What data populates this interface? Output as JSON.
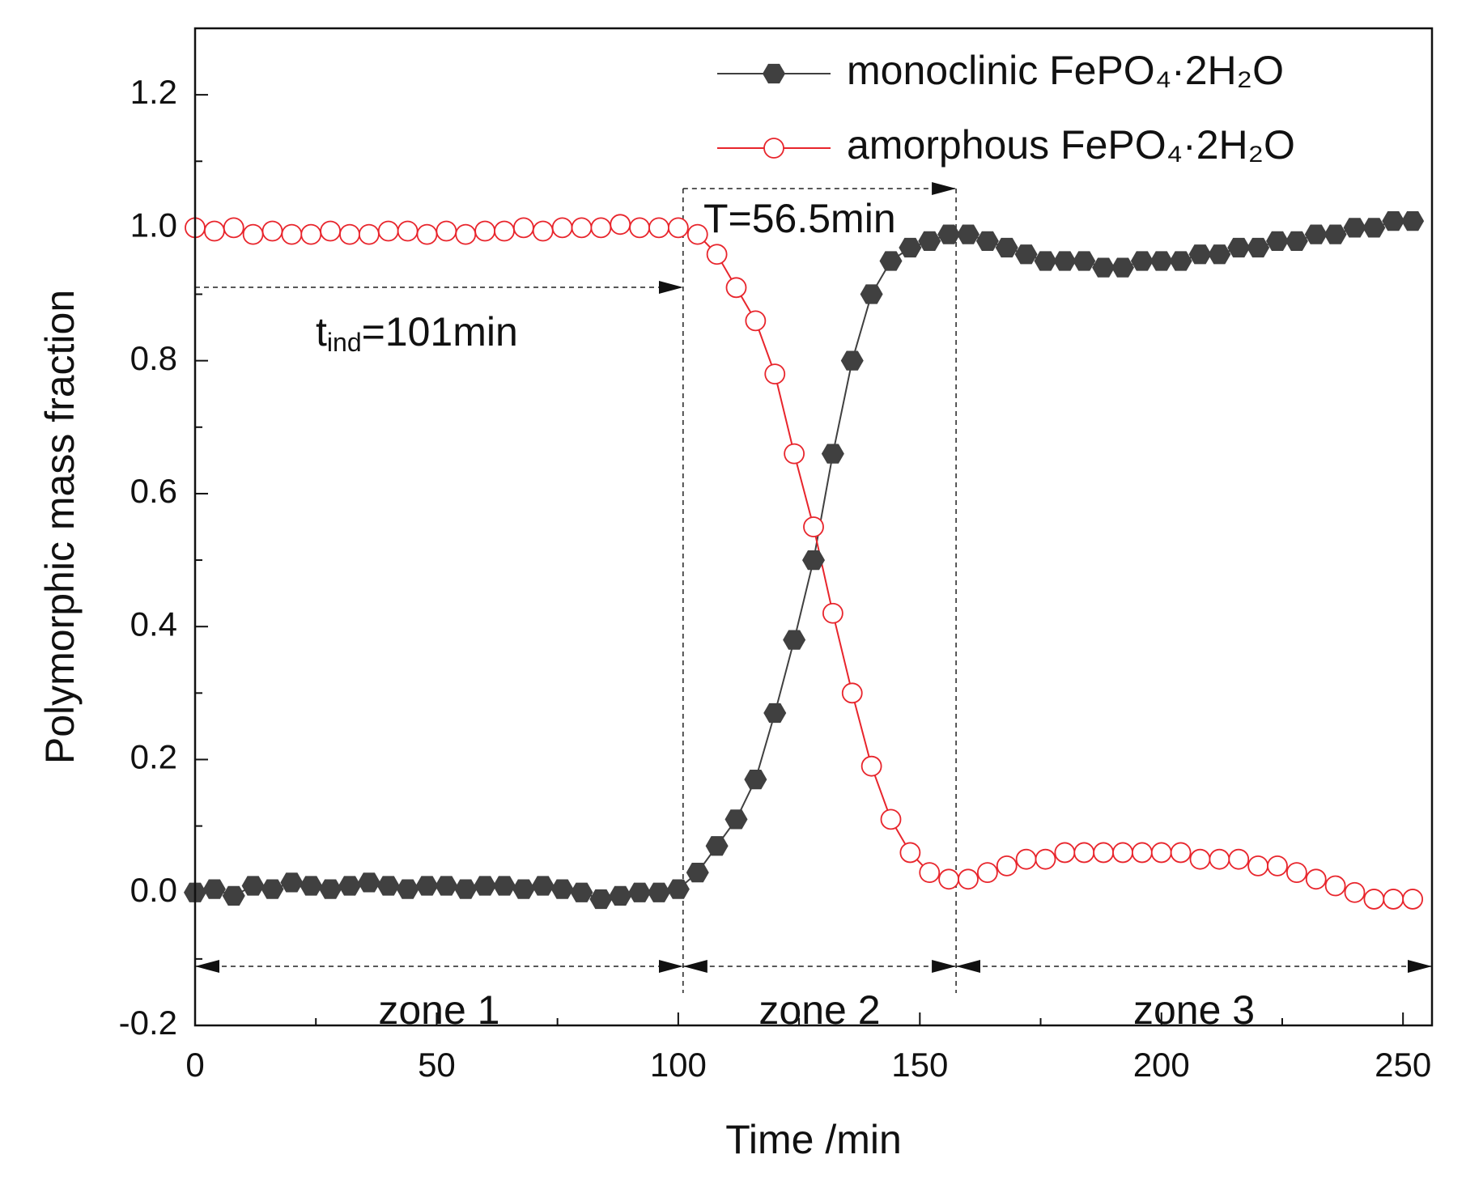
{
  "chart_data": {
    "type": "line",
    "xlabel": "Time /min",
    "ylabel": "Polymorphic mass fraction",
    "x": [
      0,
      4,
      8,
      12,
      16,
      20,
      24,
      28,
      32,
      36,
      40,
      44,
      48,
      52,
      56,
      60,
      64,
      68,
      72,
      76,
      80,
      84,
      88,
      92,
      96,
      100,
      104,
      108,
      112,
      116,
      120,
      124,
      128,
      132,
      136,
      140,
      144,
      148,
      152,
      156,
      160,
      164,
      168,
      172,
      176,
      180,
      184,
      188,
      192,
      196,
      200,
      204,
      208,
      212,
      216,
      220,
      224,
      228,
      232,
      236,
      240,
      244,
      248,
      252
    ],
    "series": [
      {
        "name": "monoclinic FePO₄·2H₂O",
        "color": "#404040",
        "marker": "hexagon",
        "values": [
          0,
          0.005,
          -0.005,
          0.01,
          0.005,
          0.015,
          0.01,
          0.005,
          0.01,
          0.015,
          0.01,
          0.005,
          0.01,
          0.01,
          0.005,
          0.01,
          0.01,
          0.005,
          0.01,
          0.005,
          0.0,
          -0.01,
          -0.005,
          0.0,
          0.0,
          0.005,
          0.03,
          0.07,
          0.11,
          0.17,
          0.27,
          0.38,
          0.5,
          0.66,
          0.8,
          0.9,
          0.95,
          0.97,
          0.98,
          0.99,
          0.99,
          0.98,
          0.97,
          0.96,
          0.95,
          0.95,
          0.95,
          0.94,
          0.94,
          0.95,
          0.95,
          0.95,
          0.96,
          0.96,
          0.97,
          0.97,
          0.98,
          0.98,
          0.99,
          0.99,
          1.0,
          1.0,
          1.01,
          1.01
        ]
      },
      {
        "name": "amorphous FePO₄·2H₂O",
        "color": "#e8252c",
        "marker": "open-circle",
        "values": [
          1.0,
          0.995,
          1.0,
          0.99,
          0.995,
          0.99,
          0.99,
          0.995,
          0.99,
          0.99,
          0.995,
          0.995,
          0.99,
          0.995,
          0.99,
          0.995,
          0.995,
          1.0,
          0.995,
          1.0,
          1.0,
          1.0,
          1.005,
          1.0,
          1.0,
          1.0,
          0.99,
          0.96,
          0.91,
          0.86,
          0.78,
          0.66,
          0.55,
          0.42,
          0.3,
          0.19,
          0.11,
          0.06,
          0.03,
          0.02,
          0.02,
          0.03,
          0.04,
          0.05,
          0.05,
          0.06,
          0.06,
          0.06,
          0.06,
          0.06,
          0.06,
          0.06,
          0.05,
          0.05,
          0.05,
          0.04,
          0.04,
          0.03,
          0.02,
          0.01,
          0.0,
          -0.01,
          -0.01,
          -0.01
        ]
      }
    ],
    "xlim": [
      0,
      256
    ],
    "ylim": [
      -0.2,
      1.3
    ],
    "xticks": [
      0,
      50,
      100,
      150,
      200,
      250
    ],
    "yticks": [
      -0.2,
      {
        "value": 0,
        "label": "0.0"
      },
      0.2,
      0.4,
      0.6,
      0.8,
      {
        "value": 1,
        "label": "1.0"
      },
      1.2
    ],
    "xminorticks": [
      25,
      75,
      125,
      175,
      225
    ],
    "yminorticks": [
      -0.1,
      0.1,
      0.3,
      0.5,
      0.7,
      0.9,
      1.1
    ],
    "legend": "upper right",
    "induction": {
      "symbol": "t",
      "subscript": "ind",
      "label": "=101min",
      "value": 101
    },
    "duration": {
      "label": "T=56.5min",
      "value": 56.5
    },
    "zones": [
      "zone 1",
      "zone 2",
      "zone 3"
    ]
  }
}
